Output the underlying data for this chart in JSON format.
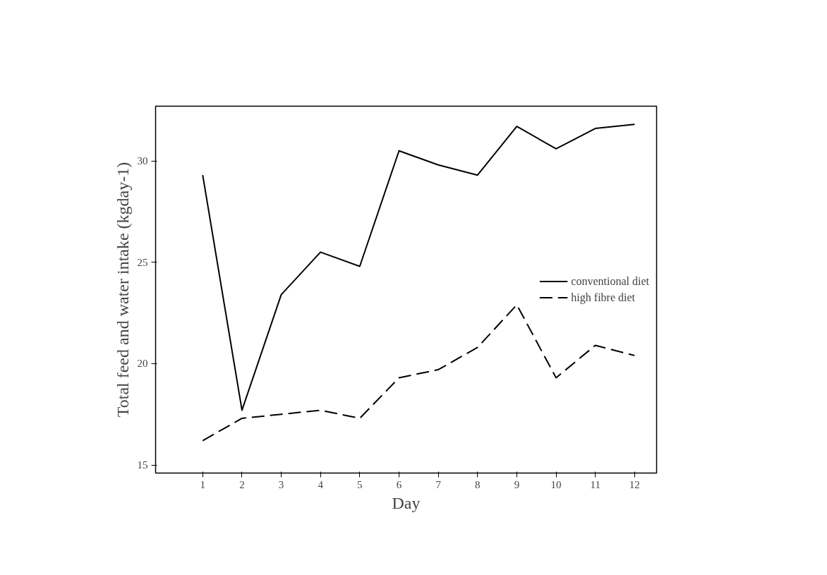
{
  "chart_data": {
    "type": "line",
    "xlabel": "Day",
    "ylabel": "Total feed and water intake (kgday-1)",
    "x": [
      1,
      2,
      3,
      4,
      5,
      6,
      7,
      8,
      9,
      10,
      11,
      12
    ],
    "series": [
      {
        "name": "conventional diet",
        "color": "#000000",
        "line_style": "solid",
        "values": [
          29.3,
          17.7,
          23.4,
          25.5,
          24.8,
          30.5,
          29.8,
          29.3,
          31.7,
          30.6,
          31.6,
          31.8
        ]
      },
      {
        "name": "high fibre diet",
        "color": "#000000",
        "line_style": "dashed",
        "values": [
          16.2,
          17.3,
          17.5,
          17.7,
          17.3,
          19.3,
          19.7,
          20.8,
          22.9,
          19.3,
          20.9,
          20.4
        ]
      }
    ],
    "xlim": [
      -0.2,
      12.56
    ],
    "ylim": [
      14.6,
      32.7
    ],
    "xticks": [
      1,
      2,
      3,
      4,
      5,
      6,
      7,
      8,
      9,
      10,
      11,
      12
    ],
    "yticks": [
      15,
      20,
      25,
      30
    ],
    "grid": false,
    "legend": "right",
    "marker": "none"
  }
}
